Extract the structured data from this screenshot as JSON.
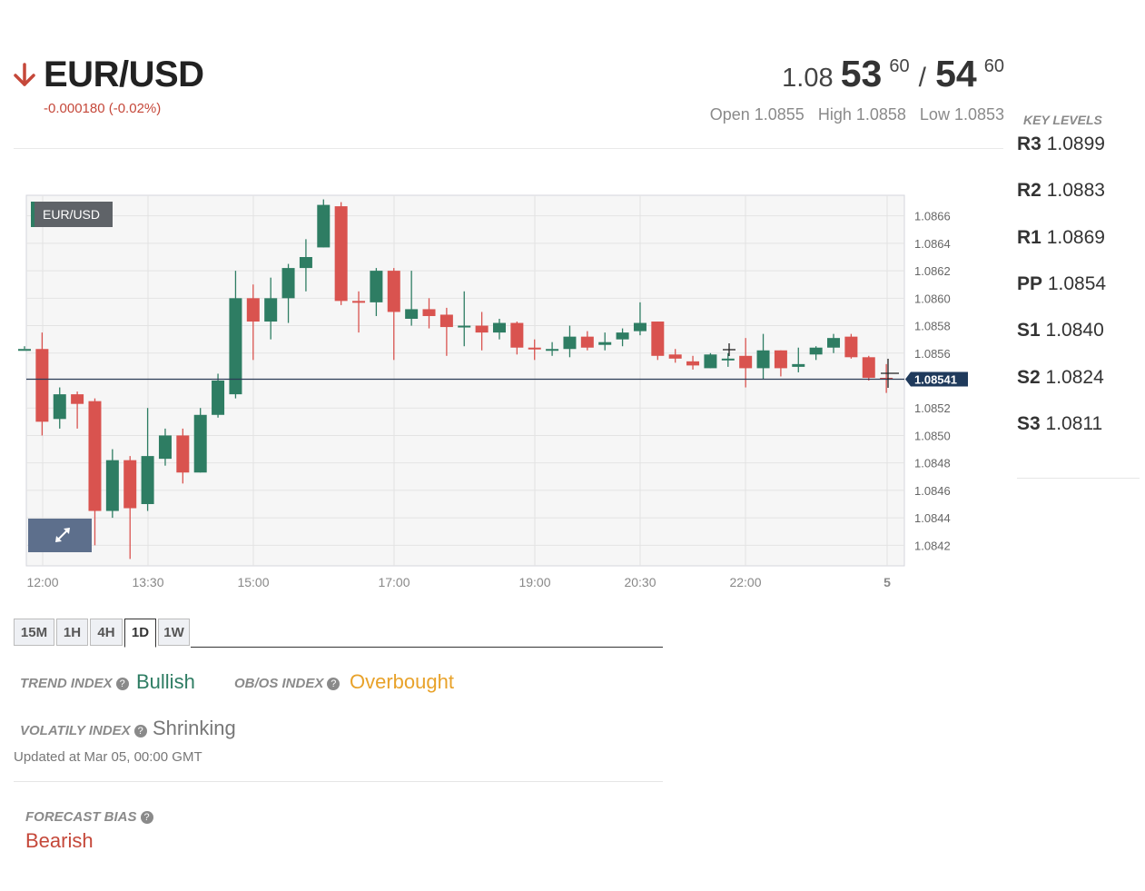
{
  "header": {
    "direction": "down",
    "symbol": "EUR/USD",
    "change": "-0.000180 (-0.02%)",
    "bid": {
      "prefix": "1.08",
      "big": "53",
      "pip": "60"
    },
    "ask": {
      "big": "54",
      "pip": "60"
    },
    "separator": "/",
    "open": "Open 1.0855",
    "high": "High 1.0858",
    "low": "Low 1.0853"
  },
  "chart": {
    "badge": "EUR/USD",
    "price_tag": "1.08541",
    "expand_icon": "expand-arrows-icon"
  },
  "chart_data": {
    "type": "candlestick",
    "title": "EUR/USD",
    "x_ticks": [
      "12:00",
      "13:30",
      "15:00",
      "17:00",
      "19:00",
      "20:30",
      "22:00",
      "5"
    ],
    "y_ticks": [
      "1.0866",
      "1.0864",
      "1.0862",
      "1.0860",
      "1.0858",
      "1.0856",
      "1.0852",
      "1.0850",
      "1.0848",
      "1.0846",
      "1.0844",
      "1.0842"
    ],
    "ylim": [
      1.08405,
      1.08675
    ],
    "last_price": 1.08541,
    "grid": true,
    "candles": [
      {
        "o": 1.08563,
        "c": 1.08563,
        "h": 1.08565,
        "l": 1.08563
      },
      {
        "o": 1.08563,
        "c": 1.0851,
        "h": 1.08575,
        "l": 1.085
      },
      {
        "o": 1.08512,
        "c": 1.0853,
        "h": 1.08535,
        "l": 1.08505
      },
      {
        "o": 1.0853,
        "c": 1.08523,
        "h": 1.08532,
        "l": 1.08505
      },
      {
        "o": 1.08525,
        "c": 1.08445,
        "h": 1.08527,
        "l": 1.0842
      },
      {
        "o": 1.08445,
        "c": 1.08482,
        "h": 1.0849,
        "l": 1.0844
      },
      {
        "o": 1.08482,
        "c": 1.08447,
        "h": 1.08485,
        "l": 1.0841
      },
      {
        "o": 1.0845,
        "c": 1.08485,
        "h": 1.0852,
        "l": 1.08445
      },
      {
        "o": 1.08483,
        "c": 1.085,
        "h": 1.08505,
        "l": 1.08478
      },
      {
        "o": 1.085,
        "c": 1.08473,
        "h": 1.08505,
        "l": 1.08465
      },
      {
        "o": 1.08473,
        "c": 1.08515,
        "h": 1.0852,
        "l": 1.08473
      },
      {
        "o": 1.08515,
        "c": 1.0854,
        "h": 1.08545,
        "l": 1.08513
      },
      {
        "o": 1.0853,
        "c": 1.086,
        "h": 1.0862,
        "l": 1.08527
      },
      {
        "o": 1.086,
        "c": 1.08583,
        "h": 1.0861,
        "l": 1.08555
      },
      {
        "o": 1.08583,
        "c": 1.086,
        "h": 1.08615,
        "l": 1.0857
      },
      {
        "o": 1.086,
        "c": 1.08622,
        "h": 1.08625,
        "l": 1.08582
      },
      {
        "o": 1.08622,
        "c": 1.0863,
        "h": 1.08643,
        "l": 1.08605
      },
      {
        "o": 1.08637,
        "c": 1.08668,
        "h": 1.08672,
        "l": 1.08637
      },
      {
        "o": 1.08667,
        "c": 1.08598,
        "h": 1.0867,
        "l": 1.08595
      },
      {
        "o": 1.08598,
        "c": 1.08597,
        "h": 1.08605,
        "l": 1.08575
      },
      {
        "o": 1.08597,
        "c": 1.0862,
        "h": 1.08622,
        "l": 1.08587
      },
      {
        "o": 1.0862,
        "c": 1.0859,
        "h": 1.08622,
        "l": 1.08555
      },
      {
        "o": 1.08585,
        "c": 1.08592,
        "h": 1.0862,
        "l": 1.0858
      },
      {
        "o": 1.08592,
        "c": 1.08587,
        "h": 1.086,
        "l": 1.08578
      },
      {
        "o": 1.08588,
        "c": 1.08579,
        "h": 1.08593,
        "l": 1.08558
      },
      {
        "o": 1.0858,
        "c": 1.0858,
        "h": 1.08605,
        "l": 1.08565
      },
      {
        "o": 1.0858,
        "c": 1.08575,
        "h": 1.0859,
        "l": 1.08562
      },
      {
        "o": 1.08575,
        "c": 1.08582,
        "h": 1.08585,
        "l": 1.0857
      },
      {
        "o": 1.08582,
        "c": 1.08564,
        "h": 1.08583,
        "l": 1.08559
      },
      {
        "o": 1.08564,
        "c": 1.08563,
        "h": 1.0857,
        "l": 1.08555
      },
      {
        "o": 1.08563,
        "c": 1.08563,
        "h": 1.08568,
        "l": 1.08558
      },
      {
        "o": 1.08563,
        "c": 1.08572,
        "h": 1.0858,
        "l": 1.08557
      },
      {
        "o": 1.08572,
        "c": 1.08564,
        "h": 1.08576,
        "l": 1.08562
      },
      {
        "o": 1.08566,
        "c": 1.08568,
        "h": 1.08575,
        "l": 1.08562
      },
      {
        "o": 1.0857,
        "c": 1.08575,
        "h": 1.08578,
        "l": 1.08565
      },
      {
        "o": 1.08576,
        "c": 1.08582,
        "h": 1.08597,
        "l": 1.08573
      },
      {
        "o": 1.08583,
        "c": 1.08558,
        "h": 1.08583,
        "l": 1.08555
      },
      {
        "o": 1.08559,
        "c": 1.08556,
        "h": 1.08563,
        "l": 1.08553
      },
      {
        "o": 1.08554,
        "c": 1.08551,
        "h": 1.08558,
        "l": 1.08548
      },
      {
        "o": 1.08549,
        "c": 1.08559,
        "h": 1.0856,
        "l": 1.08549
      },
      {
        "o": 1.08556,
        "c": 1.08556,
        "h": 1.0856,
        "l": 1.0855
      },
      {
        "o": 1.08558,
        "c": 1.08549,
        "h": 1.08571,
        "l": 1.08535
      },
      {
        "o": 1.08549,
        "c": 1.08562,
        "h": 1.08574,
        "l": 1.08541
      },
      {
        "o": 1.08562,
        "c": 1.08549,
        "h": 1.08562,
        "l": 1.08543
      },
      {
        "o": 1.0855,
        "c": 1.08552,
        "h": 1.08564,
        "l": 1.08546
      },
      {
        "o": 1.08559,
        "c": 1.08564,
        "h": 1.08565,
        "l": 1.08555
      },
      {
        "o": 1.08564,
        "c": 1.08571,
        "h": 1.08574,
        "l": 1.0856
      },
      {
        "o": 1.08572,
        "c": 1.08557,
        "h": 1.08574,
        "l": 1.08556
      },
      {
        "o": 1.08557,
        "c": 1.08542,
        "h": 1.08558,
        "l": 1.0854
      },
      {
        "o": 1.08542,
        "c": 1.08541,
        "h": 1.08552,
        "l": 1.08531
      }
    ],
    "up_color": "#2e7d63",
    "down_color": "#d9534f"
  },
  "timeframes": [
    "15M",
    "1H",
    "4H",
    "1D",
    "1W"
  ],
  "active_timeframe": "1D",
  "indices": {
    "trend_label": "TREND INDEX",
    "trend_value": "Bullish",
    "obos_label": "OB/OS INDEX",
    "obos_value": "Overbought",
    "vol_label": "VOLATILY INDEX",
    "vol_value": "Shrinking",
    "help": "?"
  },
  "updated": "Updated at Mar 05, 00:00 GMT",
  "forecast": {
    "label": "FORECAST BIAS",
    "value": "Bearish"
  },
  "key_levels": {
    "title": "KEY LEVELS",
    "levels": [
      {
        "name": "R3",
        "value": "1.0899"
      },
      {
        "name": "R2",
        "value": "1.0883"
      },
      {
        "name": "R1",
        "value": "1.0869"
      },
      {
        "name": "PP",
        "value": "1.0854"
      },
      {
        "name": "S1",
        "value": "1.0840"
      },
      {
        "name": "S2",
        "value": "1.0824"
      },
      {
        "name": "S3",
        "value": "1.0811"
      }
    ]
  },
  "colors": {
    "down": "#c5483a",
    "bullish": "#2e7d63",
    "overbought": "#e8a22a",
    "price_tag_bg": "#1f3a5c"
  }
}
